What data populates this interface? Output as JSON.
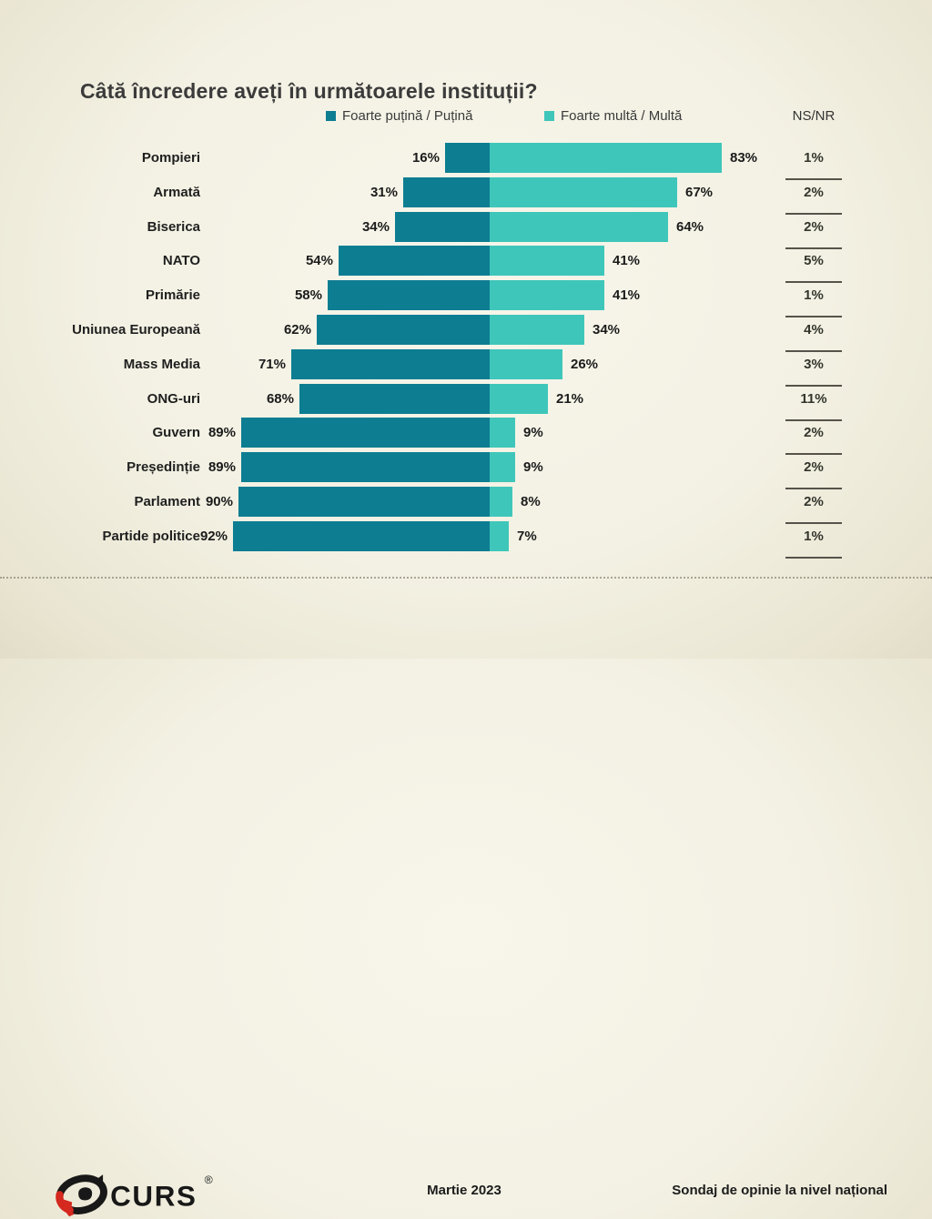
{
  "title": "Câtă încredere aveți în următoarele instituții?",
  "legend": {
    "negative_label": "Foarte puțină / Puțină",
    "positive_label": "Foarte multă / Multă",
    "nsnr_label": "NS/NR"
  },
  "colors": {
    "negative": "#0d7d92",
    "positive": "#3fc6ba",
    "background": "#f3f1e3",
    "underline": "#55534a",
    "logo_red": "#d5281e",
    "logo_black": "#181818"
  },
  "chart_data": {
    "type": "bar",
    "orientation": "horizontal-diverging",
    "unit": "%",
    "title": "Câtă încredere aveți în următoarele instituții?",
    "categories": [
      "Pompieri",
      "Armată",
      "Biserica",
      "NATO",
      "Primărie",
      "Uniunea Europeană",
      "Mass Media",
      "ONG-uri",
      "Guvern",
      "Președinție",
      "Parlament",
      "Partide politice"
    ],
    "series": [
      {
        "name": "Foarte puțină / Puțină",
        "values": [
          16,
          31,
          34,
          54,
          58,
          62,
          71,
          68,
          89,
          89,
          90,
          92
        ]
      },
      {
        "name": "Foarte multă / Multă",
        "values": [
          83,
          67,
          64,
          41,
          41,
          34,
          26,
          21,
          9,
          9,
          8,
          7
        ]
      },
      {
        "name": "NS/NR",
        "values": [
          1,
          2,
          2,
          5,
          1,
          4,
          3,
          11,
          2,
          2,
          2,
          1
        ]
      }
    ],
    "value_label_format": "{v}%",
    "legend_position": "top",
    "grid": false
  },
  "footer": {
    "logo_text": "CURS",
    "registered_mark": "®",
    "date": "Martie 2023",
    "note": "Sondaj de opinie la nivel național"
  }
}
